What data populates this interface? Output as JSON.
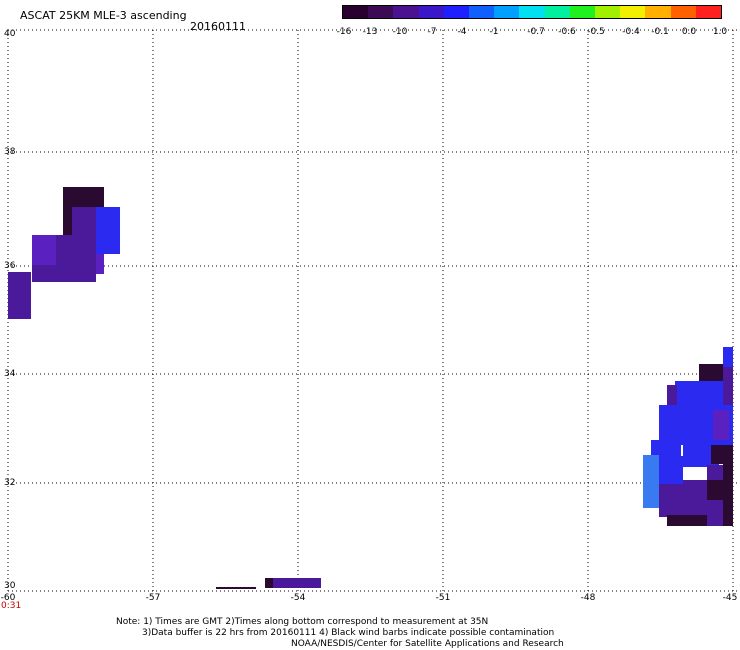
{
  "header": {
    "title": "ASCAT 25KM MLE-3 ascending",
    "date": "20160111"
  },
  "colorbar": {
    "labels": [
      "-16",
      "-13",
      "-10",
      "-7",
      "-4",
      "-1",
      "-0.7",
      "-0.6",
      "-0.5",
      "-0.4",
      "-0.1",
      "0.0",
      "1.0"
    ],
    "colors": [
      "#2a0030",
      "#3d0b55",
      "#4a1290",
      "#3a17c8",
      "#2020ff",
      "#1060ff",
      "#00a0ff",
      "#00e0f0",
      "#00f0a0",
      "#20f020",
      "#a0f000",
      "#f0f000",
      "#ffb000",
      "#ff6000",
      "#ff2020"
    ]
  },
  "map": {
    "lat_labels": [
      "40",
      "38",
      "36",
      "34",
      "32",
      "30"
    ],
    "lon_labels": [
      "-60",
      "-57",
      "-54",
      "-51",
      "-48",
      "-45"
    ],
    "time_label": "0:31",
    "gridlines": "dotted",
    "colors": {
      "dark": "#2a0a30",
      "purple": "#4a1a9a",
      "violet": "#5a20c0",
      "blue": "#2a2af0",
      "lightblue": "#3a7af0"
    }
  },
  "footer": {
    "note1": "Note: 1) Times are GMT 2)Times along bottom correspond to measurement at 35N",
    "note2": "3)Data buffer is 22 hrs from 20160111 4) Black wind barbs indicate possible contamination",
    "credit": "NOAA/NESDIS/Center for Satellite Applications and Research"
  }
}
